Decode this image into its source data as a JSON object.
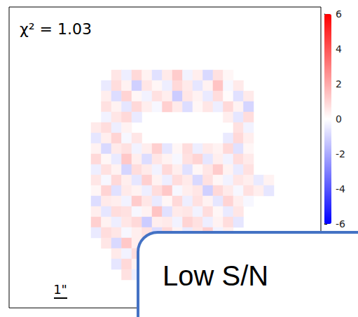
{
  "chart_data": {
    "type": "heatmap",
    "annotations": [
      "χ² = 1.03",
      "1\"",
      "Low S/N"
    ],
    "tick_labels": false,
    "colorbar": {
      "range": [
        -6,
        6
      ],
      "ticks": [
        -6,
        -4,
        -2,
        0,
        2,
        4,
        6
      ]
    },
    "cells": [
      [
        null,
        null,
        0.6,
        -0.4,
        0.9,
        0.3,
        -0.7,
        0.5,
        1.2,
        -0.3,
        0.4,
        -0.9,
        0.7,
        0.2,
        null,
        null,
        null,
        null
      ],
      [
        null,
        -0.5,
        0.8,
        0.3,
        -1.1,
        0.6,
        0.2,
        -0.4,
        0.9,
        0.5,
        -0.6,
        0.3,
        1.4,
        -0.2,
        0.5,
        null,
        null,
        null
      ],
      [
        null,
        0.4,
        -0.8,
        1.0,
        0.2,
        -0.3,
        0.7,
        0.4,
        -1.2,
        0.6,
        0.3,
        -0.5,
        0.8,
        0.1,
        -0.7,
        0.5,
        null,
        null
      ],
      [
        null,
        0.7,
        0.3,
        -0.6,
        0.9,
        0.4,
        -0.2,
        1.1,
        0.5,
        -0.8,
        0.2,
        0.6,
        -0.4,
        0.9,
        0.3,
        -1.0,
        null,
        null
      ],
      [
        null,
        -0.3,
        0.6,
        0.9,
        -0.5,
        null,
        null,
        null,
        null,
        null,
        null,
        null,
        null,
        0.4,
        -0.6,
        0.8,
        null,
        null
      ],
      [
        0.5,
        0.8,
        -0.4,
        0.3,
        null,
        null,
        null,
        null,
        null,
        null,
        null,
        null,
        null,
        null,
        0.7,
        -0.3,
        null,
        null
      ],
      [
        -0.6,
        0.4,
        1.0,
        -0.2,
        0.6,
        null,
        null,
        null,
        null,
        null,
        null,
        null,
        null,
        -0.5,
        0.9,
        0.4,
        null,
        null
      ],
      [
        0.3,
        -0.9,
        0.5,
        0.7,
        -0.3,
        0.4,
        1.1,
        -0.6,
        0.2,
        0.8,
        -0.4,
        0.5,
        0.3,
        0.9,
        -0.7,
        0.2,
        null,
        null
      ],
      [
        0.9,
        0.2,
        -0.5,
        1.3,
        0.4,
        -0.8,
        0.6,
        0.3,
        -0.2,
        0.7,
        1.0,
        -0.6,
        0.4,
        -0.3,
        0.8,
        0.5,
        null,
        null
      ],
      [
        -0.4,
        0.7,
        0.3,
        -1.0,
        0.8,
        0.5,
        -0.3,
        0.9,
        0.4,
        -0.7,
        0.2,
        0.6,
        1.2,
        0.3,
        -0.5,
        0.7,
        null,
        null
      ],
      [
        0.6,
        -0.2,
        0.9,
        0.4,
        -0.6,
        1.1,
        0.3,
        -0.4,
        0.8,
        0.5,
        -0.9,
        0.7,
        0.2,
        -0.3,
        0.6,
        0.4,
        -0.5,
        0.3
      ],
      [
        0.2,
        1.0,
        -0.7,
        0.5,
        0.3,
        -0.4,
        0.8,
        1.3,
        -0.2,
        0.4,
        0.6,
        -1.1,
        0.9,
        0.5,
        -0.2,
        0.7,
        0.4,
        -0.6
      ],
      [
        -0.8,
        0.5,
        0.4,
        -0.3,
        1.2,
        0.6,
        -0.5,
        0.2,
        0.9,
        -0.4,
        0.7,
        0.3,
        -0.6,
        1.0,
        0.4,
        -0.2,
        null,
        null
      ],
      [
        0.4,
        -0.6,
        0.8,
        0.7,
        -0.2,
        0.3,
        1.4,
        -0.7,
        0.5,
        0.6,
        -0.3,
        0.8,
        0.2,
        -0.5,
        0.6,
        null,
        null,
        null
      ],
      [
        1.1,
        0.3,
        -0.4,
        0.6,
        0.9,
        -1.2,
        0.4,
        0.5,
        -0.3,
        1.0,
        0.7,
        -0.4,
        0.3,
        0.8,
        -0.6,
        null,
        null,
        null
      ],
      [
        -0.5,
        0.8,
        0.6,
        -0.2,
        0.4,
        0.7,
        -0.8,
        0.9,
        0.3,
        -0.5,
        0.6,
        1.1,
        -0.3,
        0.4,
        null,
        null,
        null,
        null
      ],
      [
        null,
        0.6,
        -0.9,
        1.3,
        0.4,
        null,
        null,
        null,
        null,
        null,
        null,
        null,
        null,
        null,
        null,
        null,
        null,
        null
      ],
      [
        null,
        null,
        0.5,
        -0.3,
        0.8,
        null,
        null,
        null,
        null,
        null,
        null,
        null,
        null,
        null,
        null,
        null,
        null,
        null
      ],
      [
        null,
        null,
        -0.6,
        0.9,
        0.3,
        null,
        null,
        null,
        null,
        null,
        null,
        null,
        null,
        null,
        null,
        null,
        null,
        null
      ],
      [
        null,
        null,
        null,
        0.7,
        -0.4,
        null,
        null,
        null,
        null,
        null,
        null,
        null,
        null,
        null,
        null,
        null,
        null,
        null
      ]
    ]
  }
}
